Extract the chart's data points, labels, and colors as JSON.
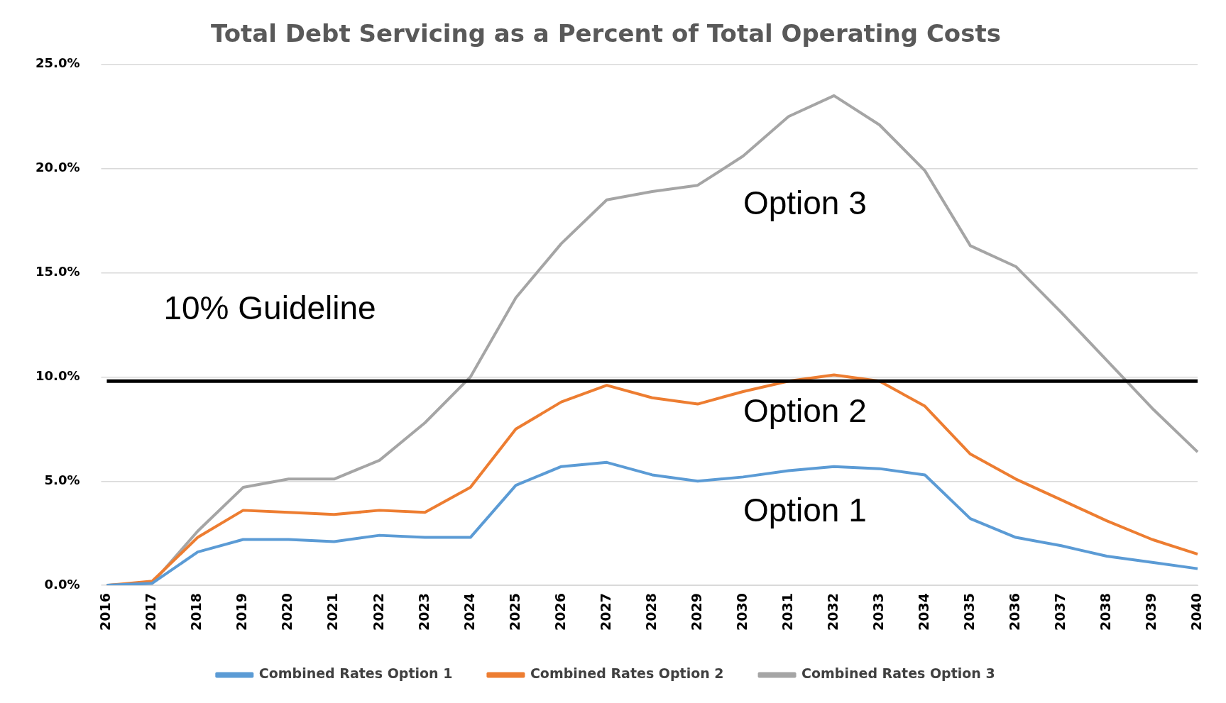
{
  "chart_data": {
    "type": "line",
    "title": "Total Debt Servicing as a Percent of Total Operating Costs",
    "categories": [
      "2016",
      "2017",
      "2018",
      "2019",
      "2020",
      "2021",
      "2022",
      "2023",
      "2024",
      "2025",
      "2026",
      "2027",
      "2028",
      "2029",
      "2030",
      "2031",
      "2032",
      "2033",
      "2034",
      "2035",
      "2036",
      "2037",
      "2038",
      "2039",
      "2040"
    ],
    "series": [
      {
        "name": "Combined Rates Option 1",
        "color": "#5b9bd5",
        "values": [
          0,
          0.1,
          1.6,
          2.2,
          2.2,
          2.1,
          2.4,
          2.3,
          2.3,
          4.8,
          5.7,
          5.9,
          5.3,
          5.0,
          5.2,
          5.5,
          5.7,
          5.6,
          5.3,
          3.2,
          2.3,
          1.9,
          1.4,
          1.1,
          0.8
        ]
      },
      {
        "name": "Combined Rates Option 2",
        "color": "#ed7d31",
        "values": [
          0,
          0.2,
          2.3,
          3.6,
          3.5,
          3.4,
          3.6,
          3.5,
          4.7,
          7.5,
          8.8,
          9.6,
          9.0,
          8.7,
          9.3,
          9.8,
          10.1,
          9.8,
          8.6,
          6.3,
          5.1,
          4.1,
          3.1,
          2.2,
          1.5
        ]
      },
      {
        "name": "Combined Rates Option 3",
        "color": "#a5a5a5",
        "values": [
          0,
          0.1,
          2.6,
          4.7,
          5.1,
          5.1,
          6.0,
          7.8,
          10.0,
          13.8,
          16.4,
          18.5,
          18.9,
          19.2,
          20.6,
          22.5,
          23.5,
          22.1,
          19.9,
          16.3,
          15.3,
          13.1,
          10.8,
          8.5,
          6.4
        ]
      }
    ],
    "ylim": [
      0,
      25
    ],
    "yticks": [
      {
        "value": 0,
        "label": "0.0%"
      },
      {
        "value": 5,
        "label": "5.0%"
      },
      {
        "value": 10,
        "label": "10.0%"
      },
      {
        "value": 15,
        "label": "15.0%"
      },
      {
        "value": 20,
        "label": "20.0%"
      },
      {
        "value": 25,
        "label": "25.0%"
      }
    ],
    "grid": "y",
    "legend": "bottom",
    "marker": "none",
    "line_style": "solid",
    "ref_lines": [
      {
        "axis": "y",
        "value": 9.8,
        "label": "10% Guideline",
        "color": "#000000"
      }
    ],
    "annotations": [
      "Option 3",
      "Option 2",
      "Option 1"
    ]
  }
}
